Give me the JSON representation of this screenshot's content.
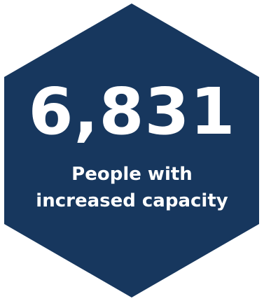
{
  "stat": {
    "value": "6,831",
    "caption_line1": "People with",
    "caption_line2": "increased capacity"
  },
  "colors": {
    "hexagon_fill": "#17375e",
    "text": "#ffffff",
    "background": "#ffffff"
  },
  "icons": {
    "badge": "hexagon-shape"
  }
}
